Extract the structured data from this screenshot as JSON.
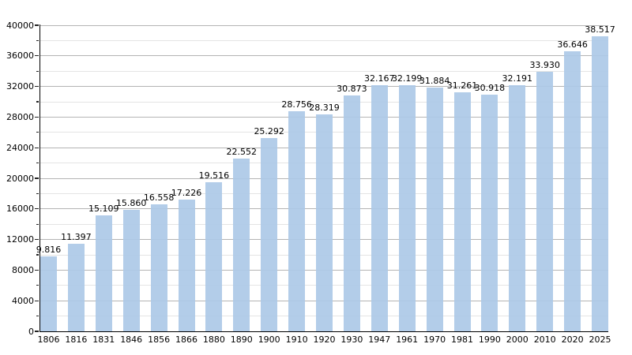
{
  "chart_data": {
    "type": "bar",
    "title": "",
    "xlabel": "",
    "ylabel": "",
    "categories": [
      "1806",
      "1816",
      "1831",
      "1846",
      "1856",
      "1866",
      "1880",
      "1890",
      "1900",
      "1910",
      "1920",
      "1930",
      "1947",
      "1961",
      "1970",
      "1981",
      "1990",
      "2000",
      "2010",
      "2020",
      "2025"
    ],
    "values": [
      9816,
      11397,
      15109,
      15860,
      16558,
      17226,
      19516,
      22552,
      25292,
      28756,
      28319,
      30873,
      32167,
      32199,
      31884,
      31261,
      30918,
      32191,
      33930,
      36646,
      38517
    ],
    "value_labels": [
      "9.816",
      "11.397",
      "15.109",
      "15.860",
      "16.558",
      "17.226",
      "19.516",
      "22.552",
      "25.292",
      "28.756",
      "28.319",
      "30.873",
      "32.167",
      "32.199",
      "31.884",
      "31.261",
      "30.918",
      "32.191",
      "33.930",
      "36.646",
      "38.517"
    ],
    "ylim": [
      0,
      40000
    ],
    "y_major_step": 4000,
    "y_minor_step": 2000,
    "y_tick_labels": [
      "0",
      "4000",
      "8000",
      "12000",
      "16000",
      "20000",
      "24000",
      "28000",
      "32000",
      "36000",
      "40000"
    ],
    "grid": "on",
    "legend": "none",
    "colors": {
      "bar": "#adc9e7",
      "grid_major": "#b4b4b4",
      "grid_minor": "#e4e4e4",
      "axis": "#000000",
      "text": "#000000",
      "background": "#ffffff"
    }
  }
}
